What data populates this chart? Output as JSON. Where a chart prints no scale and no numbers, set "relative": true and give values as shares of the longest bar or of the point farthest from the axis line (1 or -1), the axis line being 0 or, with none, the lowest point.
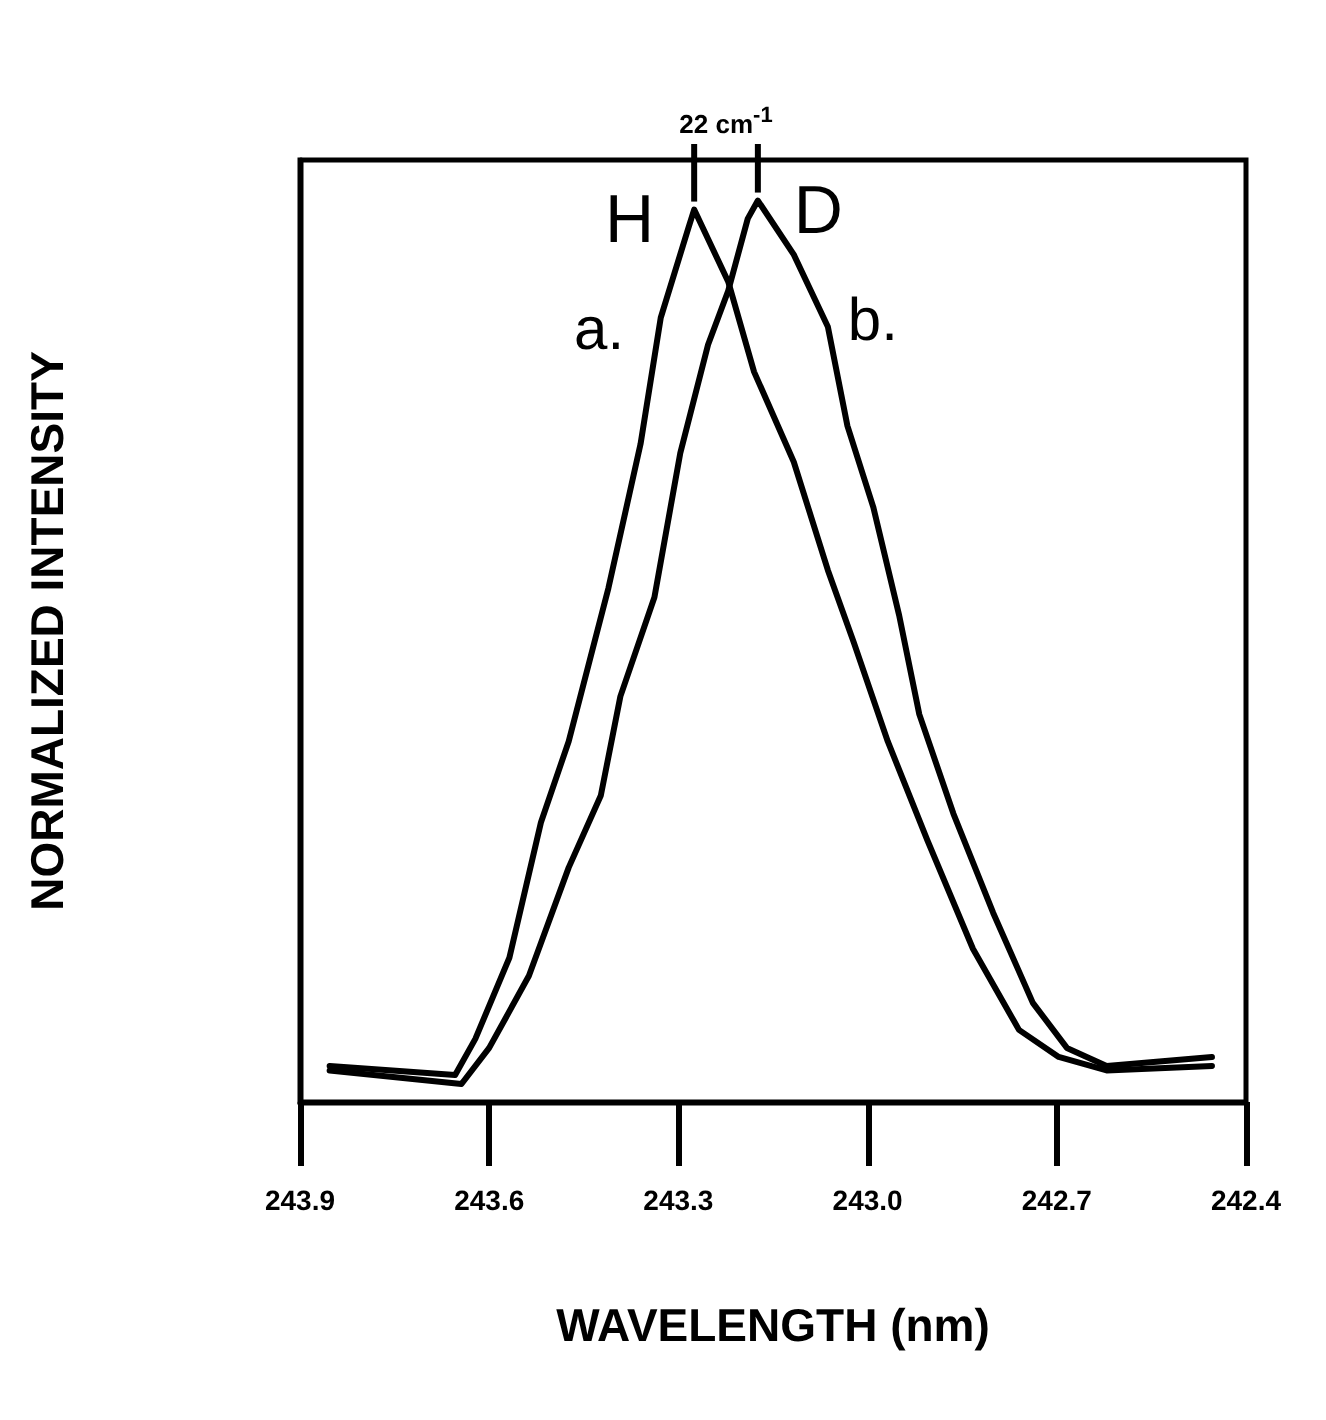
{
  "chart_data": {
    "type": "line",
    "relative": true,
    "xlabel": "WAVELENGTH (nm)",
    "ylabel": "NORMALIZED INTENSITY",
    "xlim": [
      243.9,
      242.4
    ],
    "xticks": [
      {
        "value": 243.9,
        "label": "243.9"
      },
      {
        "value": 243.6,
        "label": "243.6"
      },
      {
        "value": 243.3,
        "label": "243.3"
      },
      {
        "value": 243,
        "label": "243.0"
      },
      {
        "value": 242.7,
        "label": "242.7"
      },
      {
        "value": 242.4,
        "label": "242.4"
      }
    ],
    "annotations": [
      "22 cm$^{-1}$",
      "a.",
      "b.",
      "H",
      "D"
    ],
    "marker": "none",
    "line_style": "solid",
    "series": [
      {
        "color": "#000000",
        "x": [
          243.853,
          243.654,
          243.622,
          243.568,
          243.518,
          243.474,
          243.411,
          243.36,
          243.328,
          243.284,
          243.275,
          243.221,
          243.18,
          243.117,
          243.063,
          243.022,
          242.968,
          242.905,
          242.833,
          242.76,
          242.697,
          242.621,
          242.454
        ],
        "values": [
          0.04,
          0.03,
          0.07,
          0.16,
          0.31,
          0.4,
          0.57,
          0.73,
          0.87,
          0.97,
          0.99,
          0.91,
          0.81,
          0.71,
          0.59,
          0.51,
          0.4,
          0.29,
          0.17,
          0.08,
          0.05,
          0.035,
          0.04
        ]
      },
      {
        "color": "#000000",
        "x": [
          243.853,
          243.644,
          243.6,
          243.537,
          243.474,
          243.423,
          243.392,
          243.338,
          243.297,
          243.253,
          243.221,
          243.19,
          243.174,
          243.117,
          243.063,
          243.032,
          242.991,
          242.95,
          242.918,
          242.864,
          242.801,
          242.738,
          242.684,
          242.621,
          242.454
        ],
        "values": [
          0.035,
          0.02,
          0.06,
          0.14,
          0.26,
          0.34,
          0.45,
          0.56,
          0.72,
          0.84,
          0.9,
          0.98,
          1,
          0.94,
          0.86,
          0.75,
          0.66,
          0.54,
          0.43,
          0.32,
          0.21,
          0.11,
          0.06,
          0.04,
          0.05
        ]
      }
    ]
  }
}
